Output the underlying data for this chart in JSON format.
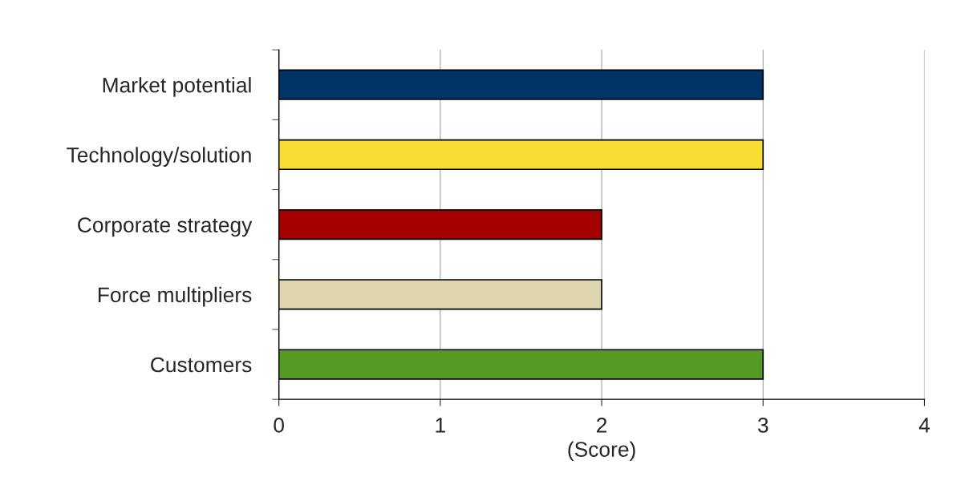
{
  "chart_data": {
    "type": "bar",
    "orientation": "horizontal",
    "categories": [
      "Market potential",
      "Technology/solution",
      "Corporate strategy",
      "Force multipliers",
      "Customers"
    ],
    "values": [
      3,
      3,
      2,
      2,
      3
    ],
    "colors": [
      "#003366",
      "#f7dc33",
      "#a50000",
      "#ddd5ad",
      "#559a23"
    ],
    "xlim": [
      0,
      4
    ],
    "xticks": [
      0,
      1,
      2,
      3,
      4
    ],
    "xlabel": "(Score)",
    "grid": "x"
  }
}
